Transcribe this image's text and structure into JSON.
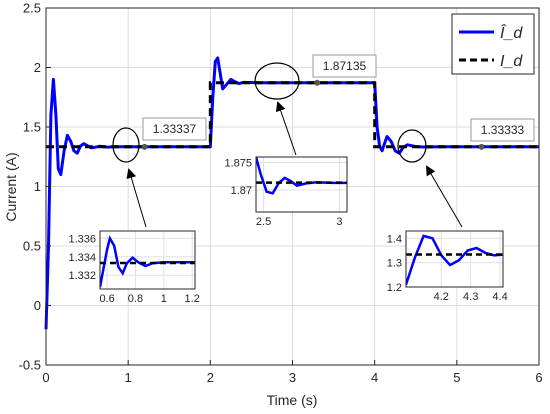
{
  "chart_data": {
    "type": "line",
    "xlabel": "Time (s)",
    "ylabel": "Current (A)",
    "xlim": [
      0,
      6
    ],
    "ylim": [
      -0.5,
      2.5
    ],
    "xticks": [
      0,
      1,
      2,
      3,
      4,
      5,
      6
    ],
    "yticks": [
      -0.5,
      0,
      0.5,
      1,
      1.5,
      2,
      2.5
    ],
    "xtick_labels": [
      "0",
      "1",
      "2",
      "3",
      "4",
      "5",
      "6"
    ],
    "ytick_labels": [
      "-0.5",
      "0",
      "0.5",
      "1",
      "1.5",
      "2",
      "2.5"
    ],
    "grid": true,
    "legend_position": "top-right",
    "series": [
      {
        "name": "Î_d",
        "style": "solid",
        "color": "#0000ff",
        "x": [
          0.0,
          0.03,
          0.06,
          0.09,
          0.12,
          0.15,
          0.18,
          0.22,
          0.26,
          0.3,
          0.34,
          0.38,
          0.42,
          0.46,
          0.5,
          0.55,
          0.6,
          0.65,
          0.7,
          0.75,
          0.8,
          0.9,
          1.0,
          2.0,
          2.03,
          2.06,
          2.09,
          2.12,
          2.15,
          2.2,
          2.25,
          2.3,
          2.35,
          2.4,
          2.5,
          2.6,
          2.8,
          4.0,
          4.03,
          4.06,
          4.09,
          4.12,
          4.15,
          4.2,
          4.25,
          4.3,
          4.35,
          4.4,
          4.5,
          4.6,
          4.8,
          6.0
        ],
        "y": [
          -0.2,
          0.5,
          1.6,
          1.9,
          1.6,
          1.15,
          1.1,
          1.3,
          1.43,
          1.38,
          1.3,
          1.28,
          1.34,
          1.36,
          1.345,
          1.325,
          1.33,
          1.338,
          1.335,
          1.33,
          1.333,
          1.334,
          1.3333,
          1.3333,
          1.75,
          2.05,
          2.08,
          1.95,
          1.82,
          1.86,
          1.9,
          1.88,
          1.865,
          1.875,
          1.874,
          1.8712,
          1.8713,
          1.8713,
          1.5,
          1.34,
          1.3,
          1.36,
          1.42,
          1.38,
          1.3,
          1.28,
          1.33,
          1.35,
          1.335,
          1.332,
          1.3333,
          1.3333
        ]
      },
      {
        "name": "I_d",
        "style": "dashed",
        "color": "#000000",
        "x": [
          0.0,
          2.0,
          2.0,
          4.0,
          4.0,
          6.0
        ],
        "y": [
          1.33333,
          1.33333,
          1.87135,
          1.87135,
          1.33333,
          1.33333
        ]
      }
    ],
    "datatips": [
      {
        "x": 1.2,
        "y": 1.33337,
        "label": "1.33337"
      },
      {
        "x": 3.3,
        "y": 1.87135,
        "label": "1.87135"
      },
      {
        "x": 5.3,
        "y": 1.33333,
        "label": "1.33333"
      }
    ],
    "insets": [
      {
        "xlim": [
          0.55,
          1.22
        ],
        "ylim": [
          1.3305,
          1.3368
        ],
        "xticks": [
          0.6,
          0.8,
          1,
          1.2
        ],
        "xtick_labels": [
          "0.6",
          "0.8",
          "1",
          "1.2"
        ],
        "yticks": [
          1.332,
          1.334,
          1.336
        ],
        "ytick_labels": [
          "1.332",
          "1.334",
          "1.336"
        ],
        "est": {
          "x": [
            0.55,
            0.6,
            0.62,
            0.65,
            0.68,
            0.71,
            0.74,
            0.78,
            0.82,
            0.87,
            0.92,
            1.0,
            1.22
          ],
          "y": [
            1.3307,
            1.3348,
            1.336,
            1.3352,
            1.3329,
            1.3322,
            1.3333,
            1.3339,
            1.3334,
            1.333,
            1.3333,
            1.3334,
            1.3334
          ]
        },
        "ref": 1.33333
      },
      {
        "xlim": [
          2.45,
          3.05
        ],
        "ylim": [
          1.866,
          1.876
        ],
        "xticks": [
          2.5,
          3
        ],
        "xtick_labels": [
          "2.5",
          "3"
        ],
        "yticks": [
          1.87,
          1.875
        ],
        "ytick_labels": [
          "1.87",
          "1.875"
        ],
        "est": {
          "x": [
            2.45,
            2.48,
            2.52,
            2.56,
            2.6,
            2.64,
            2.68,
            2.72,
            2.78,
            2.85,
            2.95,
            3.05
          ],
          "y": [
            1.876,
            1.873,
            1.8697,
            1.8694,
            1.8713,
            1.8722,
            1.8716,
            1.8708,
            1.8712,
            1.8714,
            1.8713,
            1.8713
          ]
        },
        "ref": 1.87135
      },
      {
        "xlim": [
          4.08,
          4.41
        ],
        "ylim": [
          1.2,
          1.43
        ],
        "xticks": [
          4.2,
          4.3,
          4.4
        ],
        "xtick_labels": [
          "4.2",
          "4.3",
          "4.4"
        ],
        "yticks": [
          1.2,
          1.3,
          1.4
        ],
        "ytick_labels": [
          "1.2",
          "1.3",
          "1.4"
        ],
        "est": {
          "x": [
            4.08,
            4.11,
            4.14,
            4.17,
            4.2,
            4.23,
            4.26,
            4.29,
            4.32,
            4.35,
            4.38,
            4.41
          ],
          "y": [
            1.21,
            1.32,
            1.41,
            1.4,
            1.33,
            1.29,
            1.31,
            1.35,
            1.36,
            1.34,
            1.33,
            1.333
          ]
        },
        "ref": 1.33333
      }
    ]
  }
}
